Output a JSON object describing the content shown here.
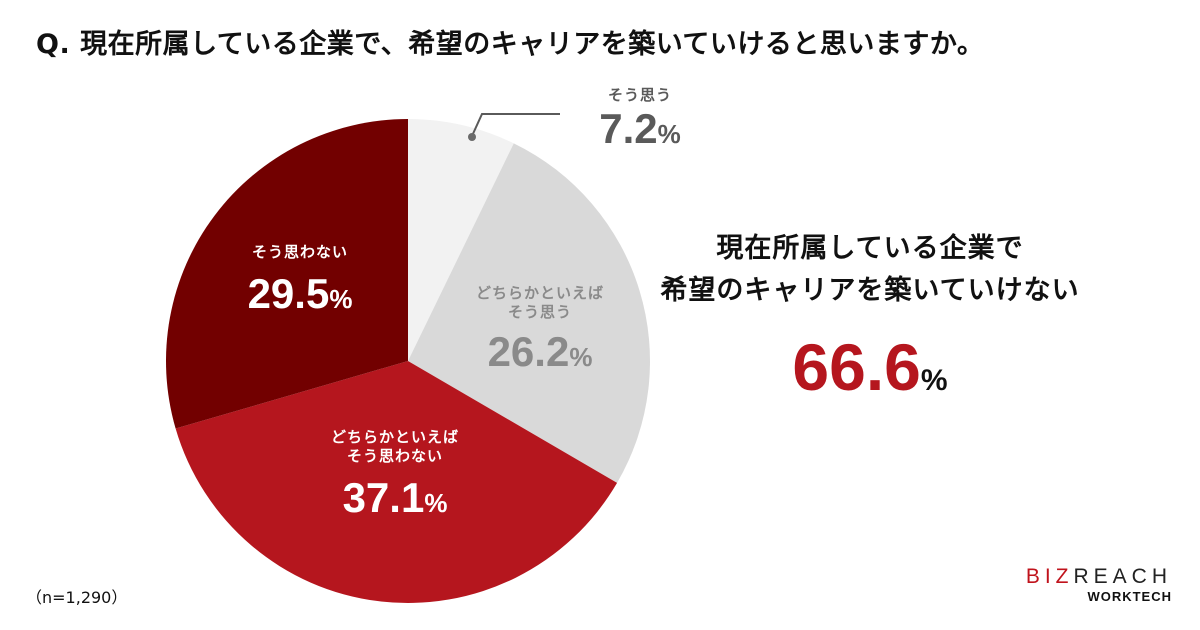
{
  "title": "Q. 現在所属している企業で、希望のキャリアを築いていけると思いますか。",
  "chart_data": {
    "type": "pie",
    "title": "Q. 現在所属している企業で、希望のキャリアを築いていけると思いますか。",
    "start_angle": "12 o'clock",
    "direction": "clockwise",
    "categories": [
      "そう思う",
      "どちらかといえばそう思う",
      "どちらかといえばそう思わない",
      "そう思わない"
    ],
    "values": [
      7.2,
      26.2,
      37.1,
      29.5
    ],
    "colors": [
      "#f2f2f2",
      "#d9d9d9",
      "#b5161e",
      "#720000"
    ],
    "unit": "%",
    "sample_size": "n=1,290"
  },
  "slices": [
    {
      "cat_line1": "そう思う",
      "cat_line2": "",
      "value": "7.2",
      "pct": "%"
    },
    {
      "cat_line1": "どちらかといえば",
      "cat_line2": "そう思う",
      "value": "26.2",
      "pct": "%"
    },
    {
      "cat_line1": "どちらかといえば",
      "cat_line2": "そう思わない",
      "value": "37.1",
      "pct": "%"
    },
    {
      "cat_line1": "そう思わない",
      "cat_line2": "",
      "value": "29.5",
      "pct": "%"
    }
  ],
  "summary": {
    "line1": "現在所属している企業で",
    "line2": "希望のキャリアを築いていけない",
    "value": "66.6",
    "pct": "%"
  },
  "footnote": "（n=1,290）",
  "logo": {
    "biz": "BIZ",
    "reach": "REACH",
    "sub": "WORKTECH"
  },
  "colors": {
    "accent": "#b5161e",
    "dark_red": "#720000",
    "light_gray": "#f2f2f2",
    "mid_gray": "#d9d9d9"
  }
}
